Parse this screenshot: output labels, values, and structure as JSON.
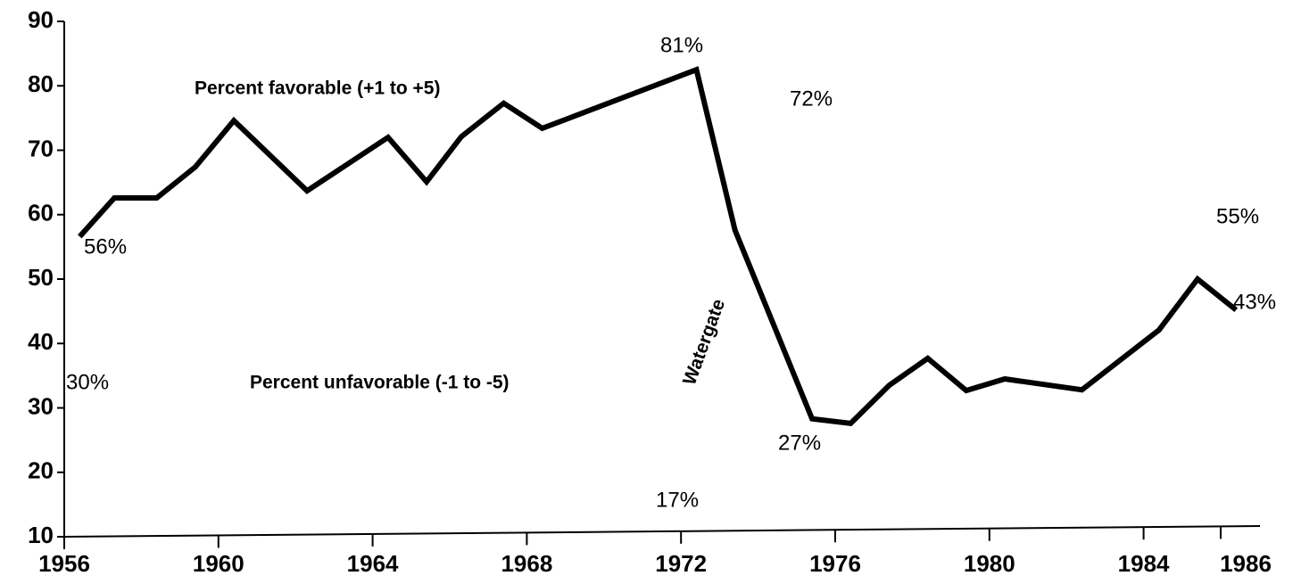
{
  "chart_data": {
    "type": "line",
    "x": [
      1956.4,
      1957.3,
      1958.4,
      1959.4,
      1960.4,
      1962.3,
      1964.4,
      1965.4,
      1966.3,
      1967.4,
      1968.4,
      1972.4,
      1973.4,
      1975.4,
      1976.4,
      1977.4,
      1978.4,
      1979.4,
      1980.4,
      1982.4,
      1984.4,
      1985.4,
      1986.4
    ],
    "series": [
      {
        "color": "#000000",
        "values": [
          56.6,
          62.6,
          62.6,
          67.4,
          74.6,
          63.7,
          72.0,
          65.1,
          72.1,
          77.3,
          73.4,
          82.5,
          57.6,
          28.3,
          27.6,
          33.5,
          37.7,
          32.7,
          34.5,
          32.8,
          42.1,
          50.0,
          45.2
        ]
      }
    ],
    "xlim": [
      1956,
      1987
    ],
    "xticks": [
      1956,
      1960,
      1964,
      1968,
      1972,
      1976,
      1980,
      1984,
      1986
    ],
    "ylim": [
      10,
      90
    ],
    "yticks": [
      10,
      20,
      30,
      40,
      50,
      60,
      70,
      80,
      90
    ],
    "annotations": [
      "Percent favorable (+1 to +5)",
      "Percent unfavorable (-1 to -5)",
      "Watergate",
      "81%",
      "72%",
      "56%",
      "30%",
      "27%",
      "17%",
      "55%",
      "43%"
    ]
  }
}
